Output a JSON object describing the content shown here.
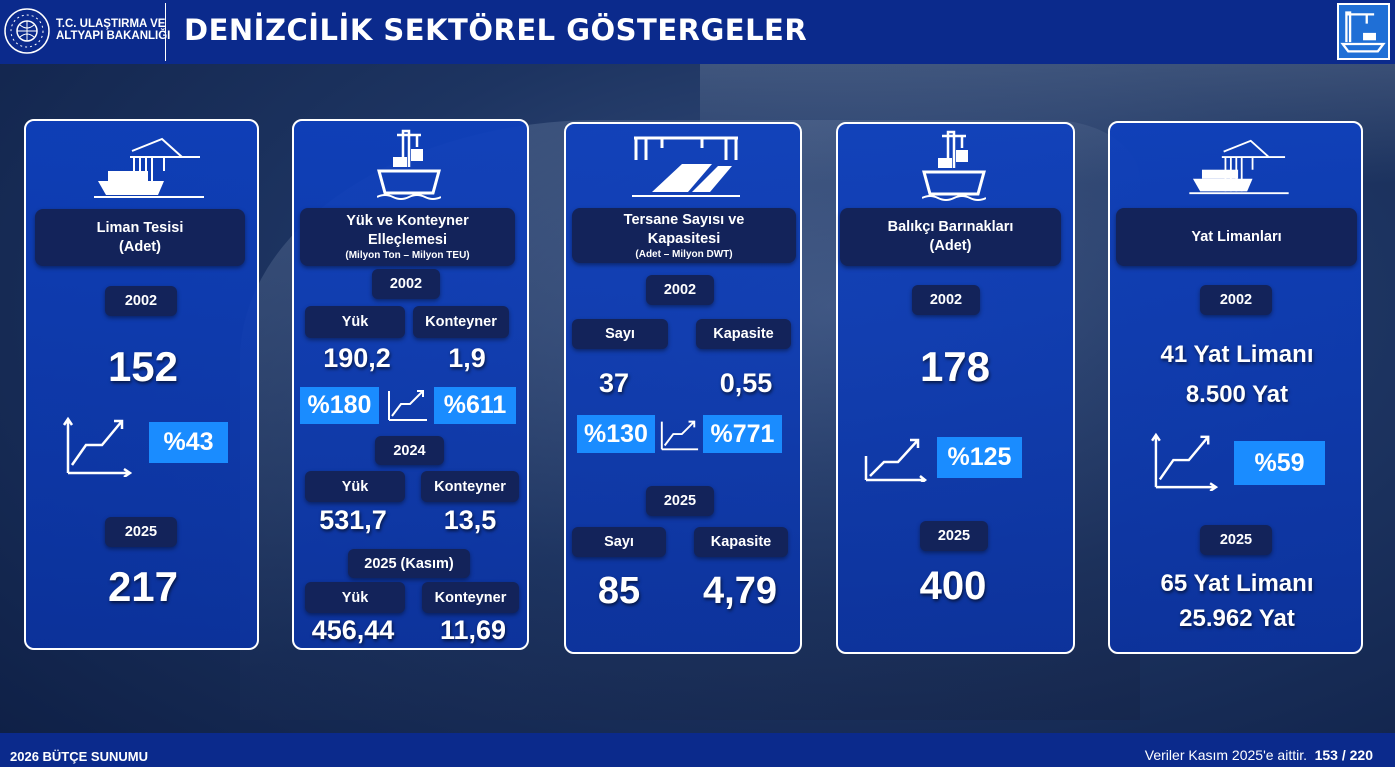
{
  "header": {
    "ministry_line1": "T.C. ULAŞTIRMA VE",
    "ministry_line2": "ALTYAPI BAKANLIĞI",
    "title": "DENİZCİLİK SEKTÖREL GÖSTERGELER"
  },
  "cards": {
    "liman": {
      "title": "Liman Tesisi",
      "subtitle": "(Adet)",
      "year1": "2002",
      "value1": "152",
      "change": "%43",
      "year2": "2025",
      "value2": "217"
    },
    "yuk": {
      "title": "Yük ve Konteyner",
      "title2": "Elleçlemesi",
      "unit": "(Milyon Ton – Milyon TEU)",
      "col1": "Yük",
      "col2": "Konteyner",
      "year1": "2002",
      "yuk1": "190,2",
      "kont1": "1,9",
      "change_yuk": "%180",
      "change_kont": "%611",
      "year2": "2024",
      "yuk2": "531,7",
      "kont2": "13,5",
      "year3": "2025 (Kasım)",
      "yuk3": "456,44",
      "kont3": "11,69"
    },
    "tersane": {
      "title": "Tersane Sayısı ve",
      "title2": "Kapasitesi",
      "unit": "(Adet – Milyon DWT)",
      "col1": "Sayı",
      "col2": "Kapasite",
      "year1": "2002",
      "sayi1": "37",
      "kap1": "0,55",
      "change_sayi": "%130",
      "change_kap": "%771",
      "year2": "2025",
      "sayi2": "85",
      "kap2": "4,79"
    },
    "balikci": {
      "title": "Balıkçı Barınakları",
      "subtitle": "(Adet)",
      "year1": "2002",
      "value1": "178",
      "change": "%125",
      "year2": "2025",
      "value2": "400"
    },
    "yat": {
      "title": "Yat Limanları",
      "year1": "2002",
      "value1a": "41 Yat Limanı",
      "value1b": "8.500 Yat",
      "change": "%59",
      "year2": "2025",
      "value2a": "65 Yat Limanı",
      "value2b": "25.962 Yat"
    }
  },
  "footer": {
    "left": "2026 BÜTÇE SUNUMU",
    "note": "Veriler Kasım 2025'e aittir.",
    "page": "153 / 220"
  },
  "colors": {
    "header": "#0b2a8c",
    "card": "#0e40be",
    "label": "#13235a",
    "percent": "#1a8cff"
  }
}
